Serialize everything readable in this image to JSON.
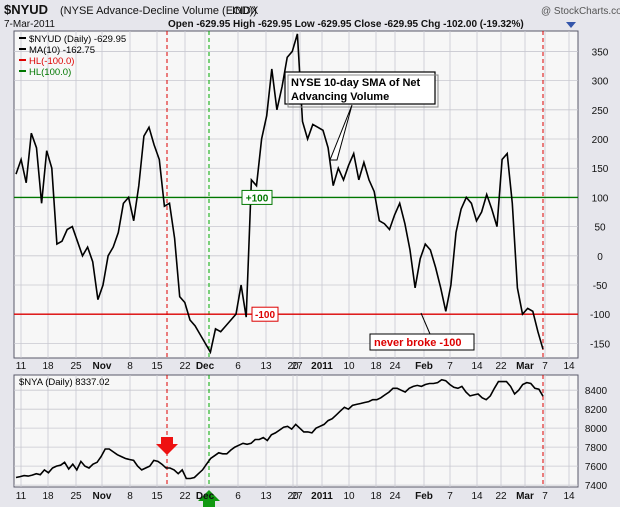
{
  "header": {
    "symbol": "$NYUD",
    "description": "(NYSE Advance-Decline Volume (EOD))",
    "exchange": "INDX",
    "date": "7-Mar-2011",
    "ohlc": "Open -629.95  High -629.95  Low -629.95  Close -629.95  Chg -102.00 (-19.32%)",
    "credit": "@ StockCharts.com"
  },
  "colors": {
    "price_line": "#000000",
    "hline_red": "#dd0000",
    "hline_green": "#007700",
    "marker_red": "#ee1111",
    "marker_green": "#119911",
    "panel_border": "#5a5a6a",
    "grid": "#c8c8d0",
    "panel_bg": "#f7f7f7"
  },
  "chart_data": [
    {
      "type": "line",
      "legend": [
        {
          "label": "$NYUD (Daily) -629.95",
          "color": "#000000"
        },
        {
          "label": "MA(10) -162.75",
          "color": "#000000"
        },
        {
          "label": "HL(-100.0)",
          "color": "#dd0000"
        },
        {
          "label": "HL(100.0)",
          "color": "#007700"
        }
      ],
      "x_tick_labels": [
        "11",
        "18",
        "25",
        "Nov",
        "8",
        "15",
        "22",
        "Dec",
        "6",
        "13",
        "20",
        "27",
        "2011",
        "10",
        "18",
        "24",
        "Feb",
        "7",
        "14",
        "22",
        "Mar",
        "7",
        "14"
      ],
      "ylim": [
        -175,
        385
      ],
      "y_ticks": [
        -150,
        -100,
        -50,
        0,
        50,
        100,
        150,
        200,
        250,
        300,
        350
      ],
      "grid": true,
      "series": [
        {
          "name": "MA(10)",
          "values": [
            140,
            165,
            125,
            210,
            185,
            90,
            180,
            150,
            20,
            25,
            45,
            50,
            25,
            0,
            15,
            -10,
            -75,
            -50,
            0,
            15,
            40,
            90,
            100,
            60,
            120,
            205,
            220,
            190,
            165,
            85,
            90,
            30,
            -70,
            -80,
            -110,
            -120,
            -135,
            -150,
            -165,
            -125,
            -130,
            -120,
            -110,
            -100,
            -50,
            -105,
            130,
            120,
            200,
            240,
            320,
            250,
            290,
            340,
            350,
            380,
            230,
            200,
            225,
            220,
            215,
            185,
            120,
            150,
            130,
            155,
            175,
            130,
            160,
            130,
            110,
            60,
            55,
            45,
            70,
            90,
            55,
            10,
            -55,
            -5,
            20,
            10,
            -20,
            -55,
            -95,
            -50,
            40,
            80,
            100,
            90,
            60,
            75,
            105,
            80,
            50,
            165,
            175,
            90,
            -55,
            -100,
            -90,
            -95,
            -130,
            -160
          ]
        }
      ],
      "horizontal_lines": [
        {
          "value": 100,
          "label": "+100"
        },
        {
          "value": -100,
          "label": "-100"
        }
      ],
      "annotations": [
        {
          "text": "NYSE 10-day SMA of Net",
          "text2": "Advancing Volume"
        },
        {
          "text": "never broke -100"
        }
      ]
    },
    {
      "type": "line",
      "legend": [
        {
          "label": "$NYA (Daily) 8337.02",
          "color": "#000000"
        }
      ],
      "x_tick_labels": [
        "11",
        "18",
        "25",
        "Nov",
        "8",
        "15",
        "22",
        "Dec",
        "6",
        "13",
        "20",
        "27",
        "2011",
        "10",
        "18",
        "24",
        "Feb",
        "7",
        "14",
        "22",
        "Mar",
        "7",
        "14"
      ],
      "ylim": [
        7380,
        8560
      ],
      "y_ticks": [
        7400,
        7600,
        7800,
        8000,
        8200,
        8400
      ],
      "grid": true,
      "series": [
        {
          "name": "$NYA",
          "values": [
            7480,
            7490,
            7500,
            7495,
            7505,
            7520,
            7510,
            7560,
            7530,
            7580,
            7600,
            7610,
            7640,
            7570,
            7620,
            7560,
            7650,
            7600,
            7580,
            7620,
            7640,
            7700,
            7780,
            7780,
            7750,
            7720,
            7700,
            7680,
            7670,
            7660,
            7600,
            7560,
            7580,
            7600,
            7660,
            7650,
            7620,
            7580,
            7580,
            7560,
            7520,
            7560,
            7470,
            7470,
            7480,
            7520,
            7560,
            7620,
            7680,
            7710,
            7740,
            7730,
            7730,
            7770,
            7800,
            7820,
            7840,
            7830,
            7840,
            7880,
            7880,
            7900,
            7870,
            7930,
            7950,
            7980,
            8010,
            8020,
            7990,
            8040,
            8000,
            7960,
            7960,
            7950,
            8000,
            8020,
            8040,
            8080,
            8100,
            8140,
            8180,
            8220,
            8200,
            8240,
            8250,
            8260,
            8270,
            8280,
            8300,
            8300,
            8320,
            8350,
            8380,
            8420,
            8420,
            8400,
            8380,
            8420,
            8440,
            8450,
            8440,
            8460,
            8470,
            8470,
            8480,
            8510,
            8500,
            8460,
            8430,
            8420,
            8440,
            8380,
            8340,
            8350,
            8360,
            8320,
            8300,
            8340,
            8420,
            8490,
            8490,
            8490,
            8440,
            8360,
            8400,
            8460,
            8480,
            8470,
            8420,
            8410,
            8337
          ]
        }
      ],
      "markers": [
        {
          "kind": "down-arrow",
          "label": ""
        },
        {
          "kind": "up-arrow",
          "label": ""
        }
      ]
    }
  ]
}
